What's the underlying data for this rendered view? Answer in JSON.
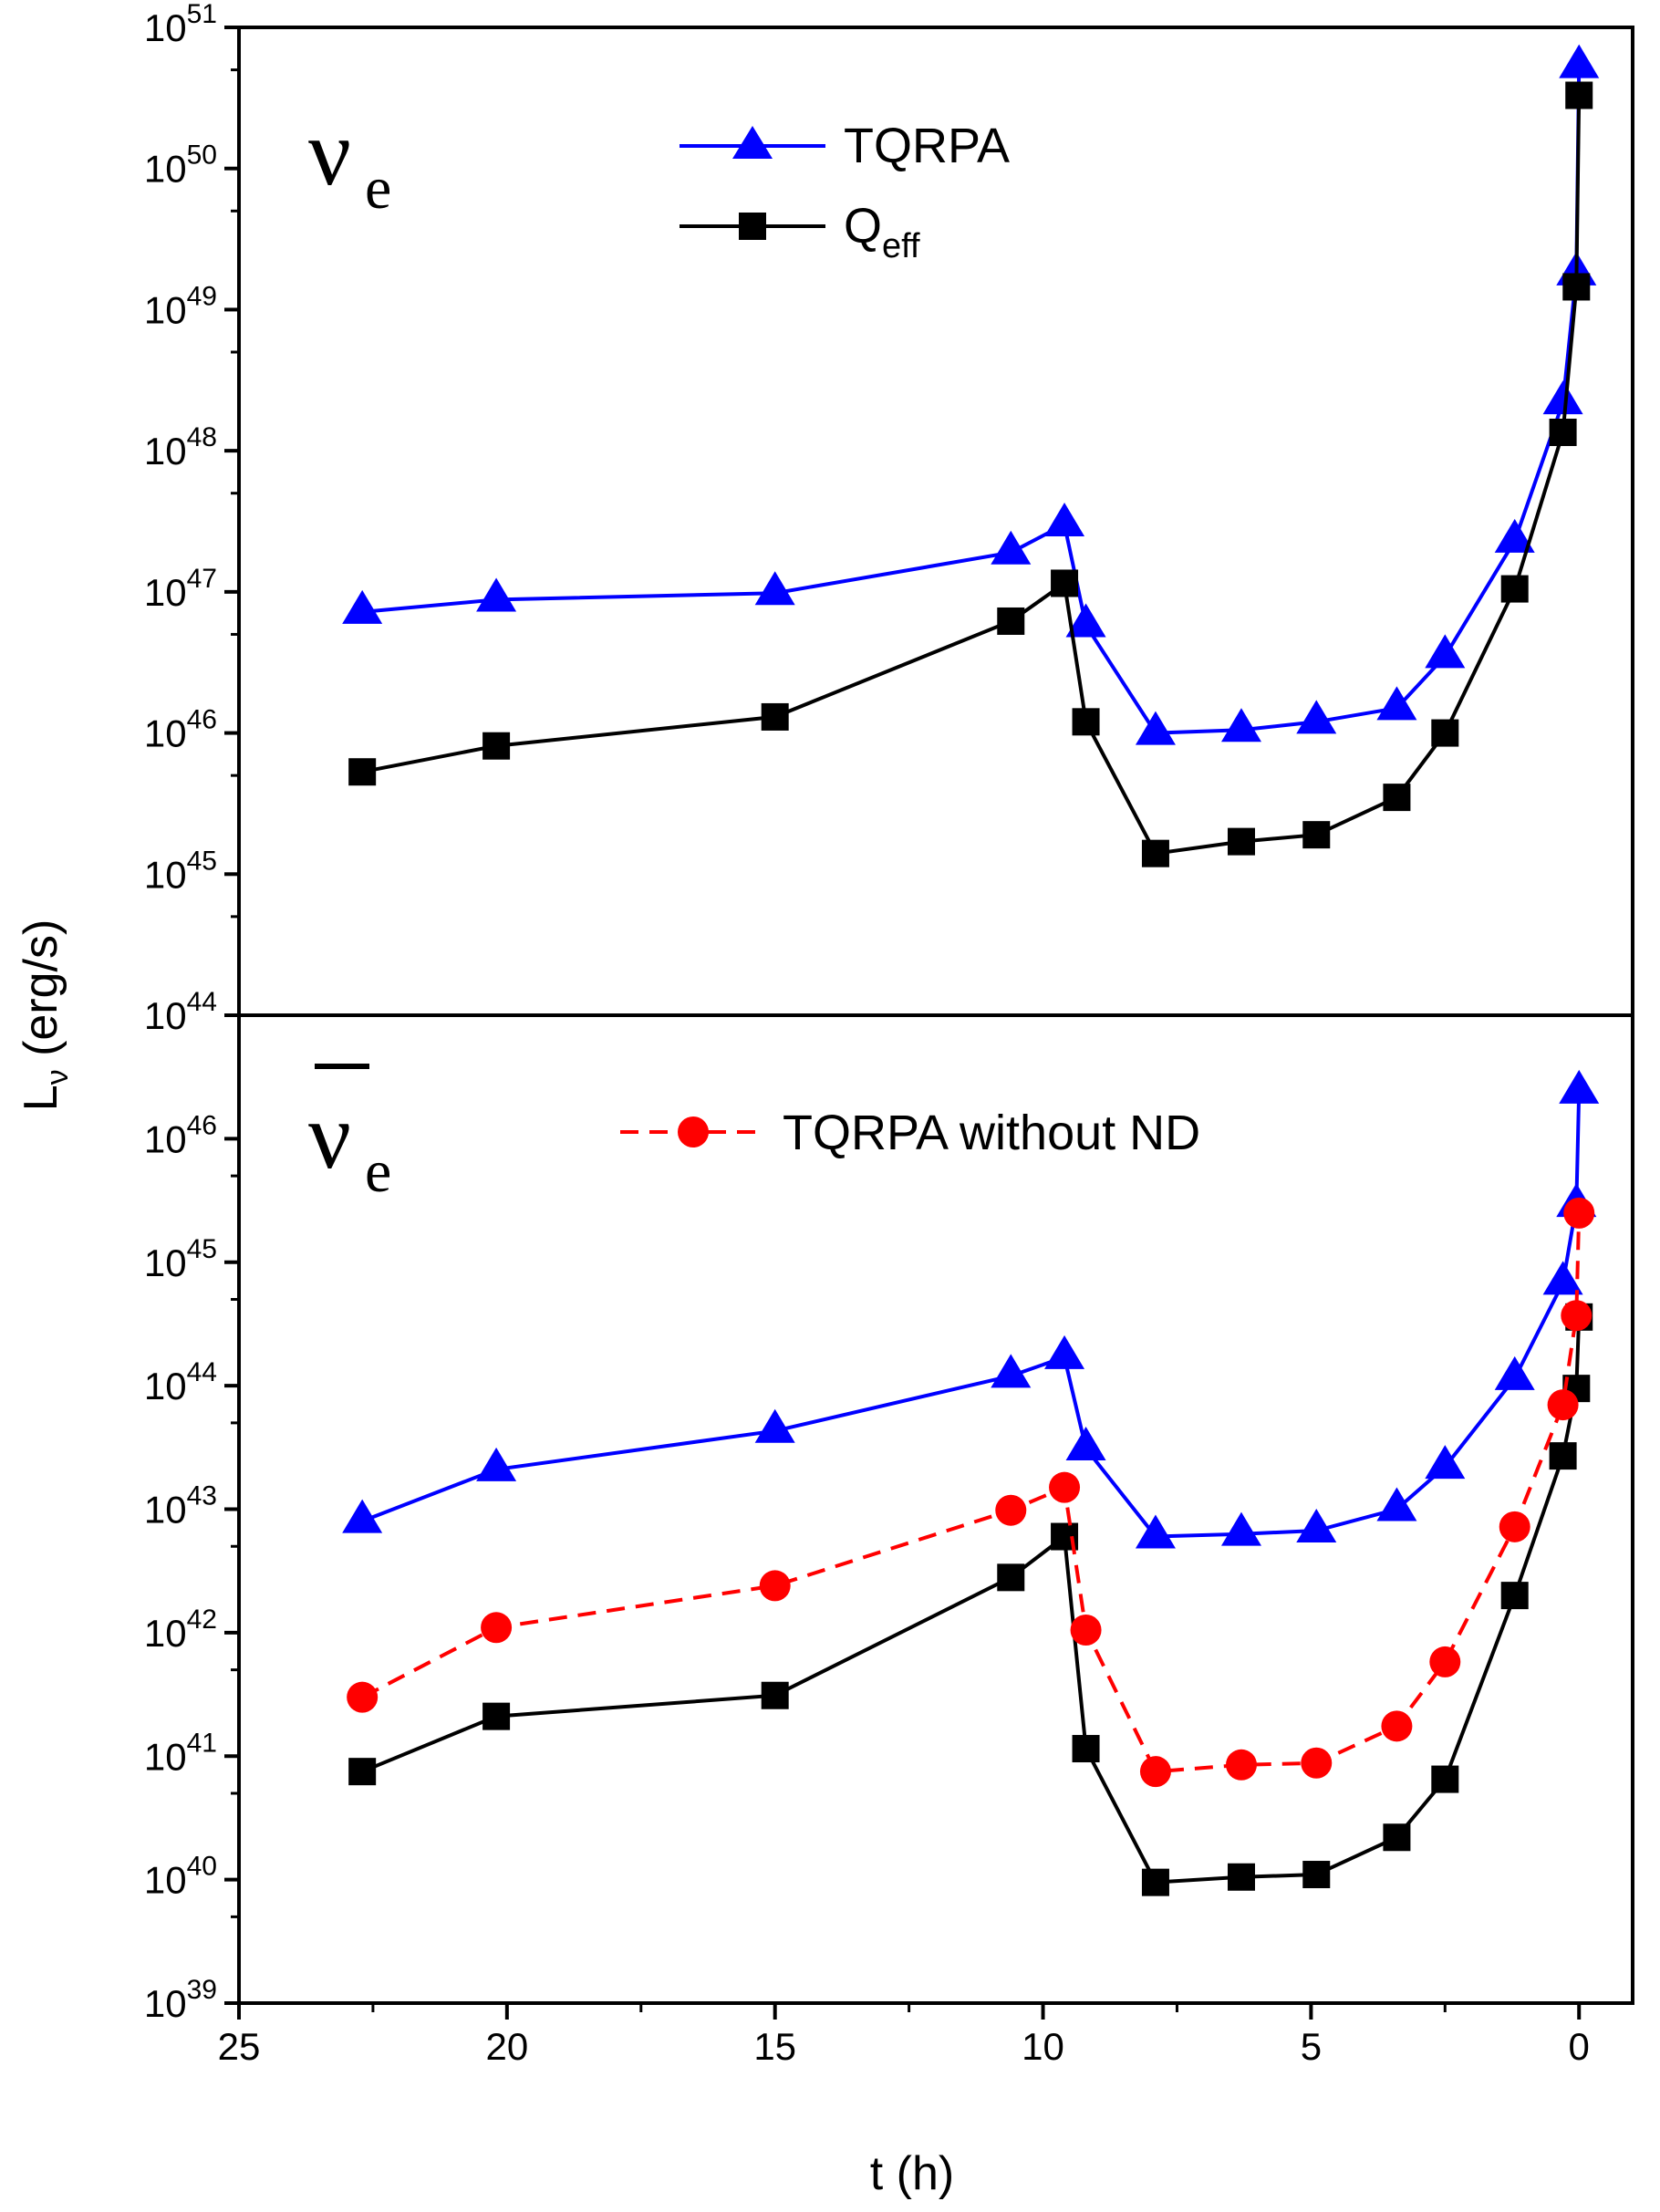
{
  "chart_data": {
    "type": "line",
    "shared_x_axis": {
      "xlabel": "t (h)",
      "xlim": [
        25,
        -1
      ],
      "reversed": true,
      "ticks": [
        25,
        20,
        15,
        10,
        5,
        0
      ],
      "tick_labels": [
        "25",
        "20",
        "15",
        "10",
        "5",
        "0"
      ]
    },
    "ylabel_main": "L",
    "ylabel_sub": "ν",
    "ylabel_unit": " (erg/s)",
    "panels": [
      {
        "panel_label": "ν",
        "panel_label_sub": "e",
        "antiparticle_bar": false,
        "y_scale": "log",
        "ylim_exp": [
          44,
          51
        ],
        "yticks": [
          {
            "base": "10",
            "exp": "44"
          },
          {
            "base": "10",
            "exp": "45"
          },
          {
            "base": "10",
            "exp": "46"
          },
          {
            "base": "10",
            "exp": "47"
          },
          {
            "base": "10",
            "exp": "48"
          },
          {
            "base": "10",
            "exp": "49"
          },
          {
            "base": "10",
            "exp": "50"
          },
          {
            "base": "10",
            "exp": "51"
          }
        ],
        "series": [
          {
            "name": "TQRPA",
            "color": "#0000ff",
            "marker": "triangle",
            "dash": false,
            "x": [
              22.7,
              20.2,
              15.0,
              10.6,
              9.6,
              9.2,
              7.9,
              6.3,
              4.9,
              3.4,
              2.5,
              1.2,
              0.3,
              0.05,
              0.0
            ],
            "y": [
              7.2e+46,
              8.8e+46,
              9.8e+46,
              1.9e+47,
              3e+47,
              5.8e+46,
              1e+46,
              1.05e+46,
              1.2e+46,
              1.5e+46,
              3.5e+46,
              2.3e+47,
              2.2e+48,
              1.8e+49,
              5.3e+50
            ]
          },
          {
            "name": "Q",
            "name_sub": "eff",
            "color": "#000000",
            "marker": "square",
            "dash": false,
            "x": [
              22.7,
              20.2,
              15.0,
              10.6,
              9.6,
              9.2,
              7.9,
              6.3,
              4.9,
              3.4,
              2.5,
              1.2,
              0.3,
              0.05,
              0.0
            ],
            "y": [
              5.3e+45,
              8.1e+45,
              1.3e+46,
              6.2e+46,
              1.15e+47,
              1.2e+46,
              1.4e+45,
              1.7e+45,
              1.9e+45,
              3.5e+45,
              1e+46,
              1.05e+47,
              1.35e+48,
              1.45e+49,
              3.3e+50
            ]
          }
        ]
      },
      {
        "panel_label": "ν",
        "panel_label_sub": "e",
        "antiparticle_bar": true,
        "y_scale": "log",
        "ylim_exp": [
          39,
          47
        ],
        "yticks": [
          {
            "base": "10",
            "exp": "39"
          },
          {
            "base": "10",
            "exp": "40"
          },
          {
            "base": "10",
            "exp": "41"
          },
          {
            "base": "10",
            "exp": "42"
          },
          {
            "base": "10",
            "exp": "43"
          },
          {
            "base": "10",
            "exp": "44"
          },
          {
            "base": "10",
            "exp": "45"
          },
          {
            "base": "10",
            "exp": "46"
          }
        ],
        "series": [
          {
            "name": "TQRPA",
            "color": "#0000ff",
            "marker": "triangle",
            "dash": false,
            "x": [
              22.7,
              20.2,
              15.0,
              10.6,
              9.6,
              9.2,
              7.9,
              6.3,
              4.9,
              3.4,
              2.5,
              1.2,
              0.3,
              0.05,
              0.0
            ],
            "y": [
              8e+42,
              2.1e+43,
              4.3e+43,
              1.2e+44,
              1.7e+44,
              3.1e+43,
              6e+42,
              6.3e+42,
              6.7e+42,
              1e+43,
              2.2e+43,
              1.15e+44,
              6.8e+44,
              2.9e+45,
              2.4e+46
            ]
          },
          {
            "name": "Q",
            "name_sub": "eff",
            "color": "#000000",
            "marker": "square",
            "dash": false,
            "x": [
              22.7,
              20.2,
              15.0,
              10.6,
              9.6,
              9.2,
              7.9,
              6.3,
              4.9,
              3.4,
              2.5,
              1.2,
              0.3,
              0.05,
              0.0
            ],
            "y": [
              7.5e+40,
              2.1e+41,
              3.1e+41,
              2.8e+42,
              6e+42,
              1.15e+41,
              9.5e+39,
              1.05e+40,
              1.1e+40,
              2.2e+40,
              6.5e+40,
              2e+42,
              2.7e+43,
              9.5e+43,
              3.6e+44
            ]
          },
          {
            "name": "TQRPA without ND",
            "color": "#ff0000",
            "marker": "circle",
            "dash": true,
            "x": [
              22.7,
              20.2,
              15.0,
              10.6,
              9.6,
              9.2,
              7.9,
              6.3,
              4.9,
              3.4,
              2.5,
              1.2,
              0.3,
              0.05,
              0.0
            ],
            "y": [
              3e+41,
              1.1e+42,
              2.4e+42,
              9.8e+42,
              1.5e+43,
              1.05e+42,
              7.5e+40,
              8.5e+40,
              8.8e+40,
              1.75e+41,
              5.8e+41,
              7.2e+42,
              7e+43,
              3.7e+44,
              2.5e+45
            ]
          }
        ]
      }
    ]
  }
}
